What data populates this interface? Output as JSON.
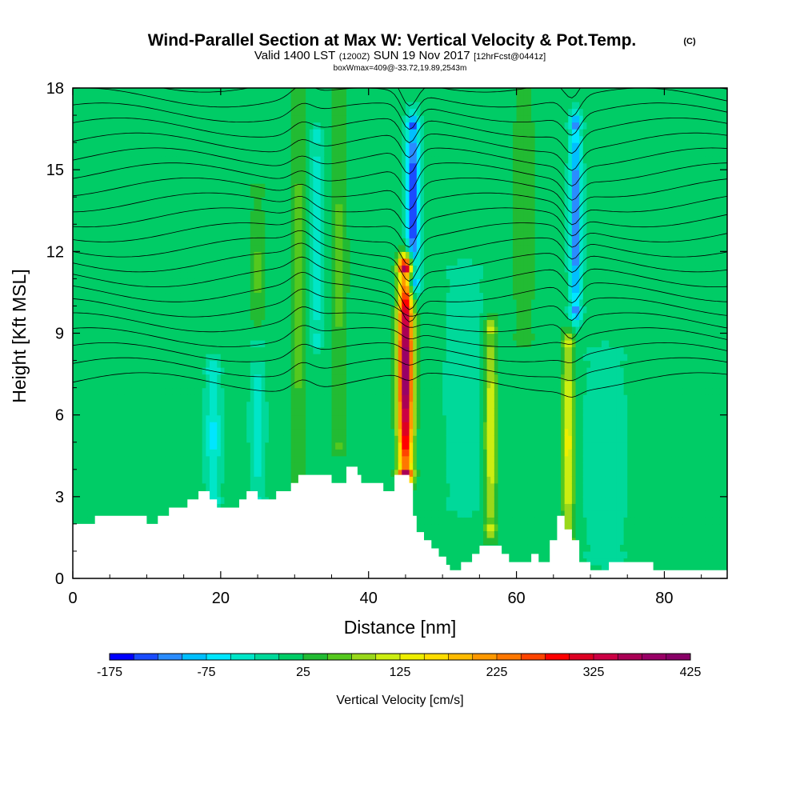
{
  "title": {
    "main": "Wind-Parallel Section at Max W: Vertical Velocity & Pot.Temp.",
    "copyright": "(C)",
    "sub_a": "Valid 1400 LST",
    "sub_b": "(1200Z)",
    "sub_c": "SUN 19 Nov 2017",
    "sub_d": "[12hrFcst@0441z]",
    "box": "boxWmax=409@-33.72,19.89,2543m"
  },
  "chart_data": {
    "type": "heatmap",
    "title": "Wind-Parallel Section at Max W: Vertical Velocity & Pot.Temp.",
    "xlabel": "Distance [nm]",
    "ylabel": "Height [Kft MSL]",
    "xlim": [
      0,
      88.5
    ],
    "ylim": [
      0,
      18
    ],
    "xticks": [
      0,
      20,
      40,
      60,
      80
    ],
    "yticks": [
      0,
      3,
      6,
      9,
      12,
      15,
      18
    ],
    "grid": false,
    "background_w_cms": 10,
    "colorbar": {
      "label": "Vertical Velocity [cm/s]",
      "min": -175,
      "max": 425,
      "step": 25,
      "ticks": [
        -175,
        -75,
        25,
        125,
        225,
        325,
        425
      ],
      "colors": [
        "#0000ff",
        "#1a4cff",
        "#2a8cff",
        "#00bfff",
        "#00e6ff",
        "#00e6c8",
        "#00d99a",
        "#00cc66",
        "#22bb33",
        "#55c81e",
        "#99d81a",
        "#ccee11",
        "#eeee00",
        "#ffdd00",
        "#ffbb00",
        "#ff9900",
        "#ff7700",
        "#ff4400",
        "#ff0000",
        "#dd0022",
        "#cc0044",
        "#aa0055",
        "#990066",
        "#880066"
      ]
    },
    "w_features": [
      {
        "x": 45,
        "z_bottom": 4.0,
        "z_top": 11.3,
        "peak": 409,
        "width": 1.0,
        "kind": "updraft"
      },
      {
        "x": 30.5,
        "z_bottom": 3.5,
        "z_top": 18,
        "peak": 60,
        "width": 1.0,
        "kind": "updraft"
      },
      {
        "x": 36,
        "z_bottom": 5.0,
        "z_top": 18,
        "peak": 55,
        "width": 1.2,
        "kind": "updraft"
      },
      {
        "x": 25,
        "z_bottom": 8.5,
        "z_top": 14,
        "peak": 55,
        "width": 0.9,
        "kind": "updraft"
      },
      {
        "x": 56.5,
        "z_bottom": 2.0,
        "z_top": 9.0,
        "peak": 130,
        "width": 0.8,
        "kind": "updraft"
      },
      {
        "x": 67,
        "z_bottom": 1.5,
        "z_top": 8.5,
        "peak": 140,
        "width": 0.8,
        "kind": "updraft"
      },
      {
        "x": 61,
        "z_bottom": 9.0,
        "z_top": 18,
        "peak": 50,
        "width": 1.5,
        "kind": "updraft"
      },
      {
        "x": 46,
        "z_bottom": 11.0,
        "z_top": 16.5,
        "peak": -160,
        "width": 0.9,
        "kind": "downdraft"
      },
      {
        "x": 68,
        "z_bottom": 10.0,
        "z_top": 16.5,
        "peak": -130,
        "width": 0.8,
        "kind": "downdraft"
      },
      {
        "x": 33,
        "z_bottom": 9.0,
        "z_top": 16,
        "peak": -50,
        "width": 0.8,
        "kind": "downdraft"
      },
      {
        "x": 19,
        "z_bottom": 3.0,
        "z_top": 7.5,
        "peak": -55,
        "width": 1.0,
        "kind": "downdraft"
      },
      {
        "x": 25,
        "z_bottom": 3.0,
        "z_top": 8.5,
        "peak": -40,
        "width": 1.0,
        "kind": "downdraft"
      },
      {
        "x": 53,
        "z_bottom": 3.0,
        "z_top": 11,
        "peak": -25,
        "width": 2.5,
        "kind": "downdraft"
      },
      {
        "x": 72,
        "z_bottom": 1.0,
        "z_top": 8.0,
        "peak": -20,
        "width": 3.0,
        "kind": "downdraft"
      }
    ],
    "terrain": [
      {
        "x": 0,
        "z": 2.0
      },
      {
        "x": 3,
        "z": 2.0
      },
      {
        "x": 3,
        "z": 2.3
      },
      {
        "x": 10,
        "z": 2.3
      },
      {
        "x": 10,
        "z": 2.0
      },
      {
        "x": 11.5,
        "z": 2.0
      },
      {
        "x": 11.5,
        "z": 2.3
      },
      {
        "x": 13,
        "z": 2.3
      },
      {
        "x": 13,
        "z": 2.6
      },
      {
        "x": 15.5,
        "z": 2.6
      },
      {
        "x": 15.5,
        "z": 2.9
      },
      {
        "x": 17,
        "z": 2.9
      },
      {
        "x": 17,
        "z": 3.2
      },
      {
        "x": 18.5,
        "z": 3.2
      },
      {
        "x": 18.5,
        "z": 2.9
      },
      {
        "x": 19.5,
        "z": 2.9
      },
      {
        "x": 19.5,
        "z": 2.6
      },
      {
        "x": 22.5,
        "z": 2.6
      },
      {
        "x": 22.5,
        "z": 2.9
      },
      {
        "x": 23.5,
        "z": 2.9
      },
      {
        "x": 23.5,
        "z": 3.2
      },
      {
        "x": 25,
        "z": 3.2
      },
      {
        "x": 25,
        "z": 2.9
      },
      {
        "x": 27.5,
        "z": 2.9
      },
      {
        "x": 27.5,
        "z": 3.2
      },
      {
        "x": 29.5,
        "z": 3.2
      },
      {
        "x": 29.5,
        "z": 3.5
      },
      {
        "x": 30.5,
        "z": 3.5
      },
      {
        "x": 30.5,
        "z": 3.8
      },
      {
        "x": 35,
        "z": 3.8
      },
      {
        "x": 35,
        "z": 3.5
      },
      {
        "x": 37,
        "z": 3.5
      },
      {
        "x": 37,
        "z": 4.1
      },
      {
        "x": 38.5,
        "z": 4.1
      },
      {
        "x": 38.5,
        "z": 3.8
      },
      {
        "x": 39,
        "z": 3.8
      },
      {
        "x": 39,
        "z": 3.5
      },
      {
        "x": 42,
        "z": 3.5
      },
      {
        "x": 42,
        "z": 3.2
      },
      {
        "x": 43.5,
        "z": 3.2
      },
      {
        "x": 43.5,
        "z": 3.8
      },
      {
        "x": 45.5,
        "z": 3.8
      },
      {
        "x": 45.5,
        "z": 3.5
      },
      {
        "x": 46,
        "z": 3.5
      },
      {
        "x": 46,
        "z": 2.3
      },
      {
        "x": 46.5,
        "z": 2.3
      },
      {
        "x": 46.5,
        "z": 1.7
      },
      {
        "x": 47.5,
        "z": 1.7
      },
      {
        "x": 47.5,
        "z": 1.4
      },
      {
        "x": 48.5,
        "z": 1.4
      },
      {
        "x": 48.5,
        "z": 1.1
      },
      {
        "x": 49.5,
        "z": 1.1
      },
      {
        "x": 49.5,
        "z": 0.8
      },
      {
        "x": 50.5,
        "z": 0.8
      },
      {
        "x": 50.5,
        "z": 0.5
      },
      {
        "x": 51,
        "z": 0.5
      },
      {
        "x": 51,
        "z": 0.3
      },
      {
        "x": 52.5,
        "z": 0.3
      },
      {
        "x": 52.5,
        "z": 0.6
      },
      {
        "x": 54,
        "z": 0.6
      },
      {
        "x": 54,
        "z": 0.9
      },
      {
        "x": 55,
        "z": 0.9
      },
      {
        "x": 55,
        "z": 1.2
      },
      {
        "x": 58,
        "z": 1.2
      },
      {
        "x": 58,
        "z": 0.9
      },
      {
        "x": 59,
        "z": 0.9
      },
      {
        "x": 59,
        "z": 0.6
      },
      {
        "x": 62,
        "z": 0.6
      },
      {
        "x": 62,
        "z": 0.9
      },
      {
        "x": 63,
        "z": 0.9
      },
      {
        "x": 63,
        "z": 0.6
      },
      {
        "x": 64.5,
        "z": 0.6
      },
      {
        "x": 64.5,
        "z": 1.4
      },
      {
        "x": 65.5,
        "z": 1.4
      },
      {
        "x": 65.5,
        "z": 2.3
      },
      {
        "x": 66.5,
        "z": 2.3
      },
      {
        "x": 66.5,
        "z": 1.8
      },
      {
        "x": 67.5,
        "z": 1.8
      },
      {
        "x": 67.5,
        "z": 1.4
      },
      {
        "x": 68.5,
        "z": 1.4
      },
      {
        "x": 68.5,
        "z": 0.6
      },
      {
        "x": 70,
        "z": 0.6
      },
      {
        "x": 70,
        "z": 0.3
      },
      {
        "x": 72.5,
        "z": 0.3
      },
      {
        "x": 72.5,
        "z": 0.6
      },
      {
        "x": 78.5,
        "z": 0.6
      },
      {
        "x": 78.5,
        "z": 0.3
      },
      {
        "x": 88.5,
        "z": 0.3
      }
    ]
  },
  "xtick_labels": [
    "0",
    "20",
    "40",
    "60",
    "80"
  ],
  "ytick_labels": [
    "0",
    "3",
    "6",
    "9",
    "12",
    "15",
    "18"
  ],
  "colorbar_tick_labels": [
    "-175",
    "-75",
    "25",
    "125",
    "225",
    "325",
    "425"
  ]
}
